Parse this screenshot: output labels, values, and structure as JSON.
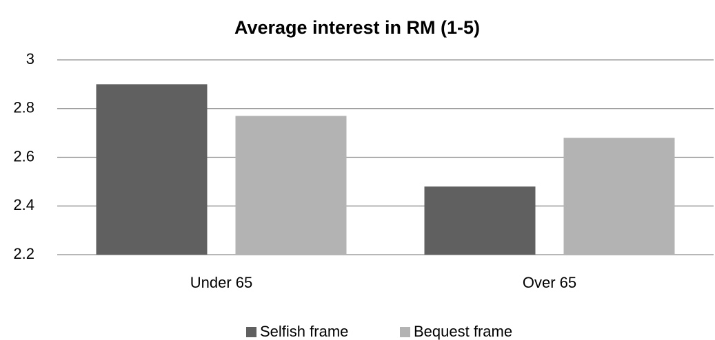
{
  "chart_data": {
    "type": "bar",
    "title": "Average interest in RM (1-5)",
    "categories": [
      "Under 65",
      "Over 65"
    ],
    "series": [
      {
        "name": "Selfish frame",
        "color": "#606060",
        "values": [
          2.9,
          2.48
        ]
      },
      {
        "name": "Bequest frame",
        "color": "#b3b3b3",
        "values": [
          2.77,
          2.68
        ]
      }
    ],
    "ylim": [
      2.2,
      3
    ],
    "yticks": [
      2.2,
      2.4,
      2.6,
      2.8,
      3
    ],
    "grid": true,
    "legend": "bottom"
  }
}
